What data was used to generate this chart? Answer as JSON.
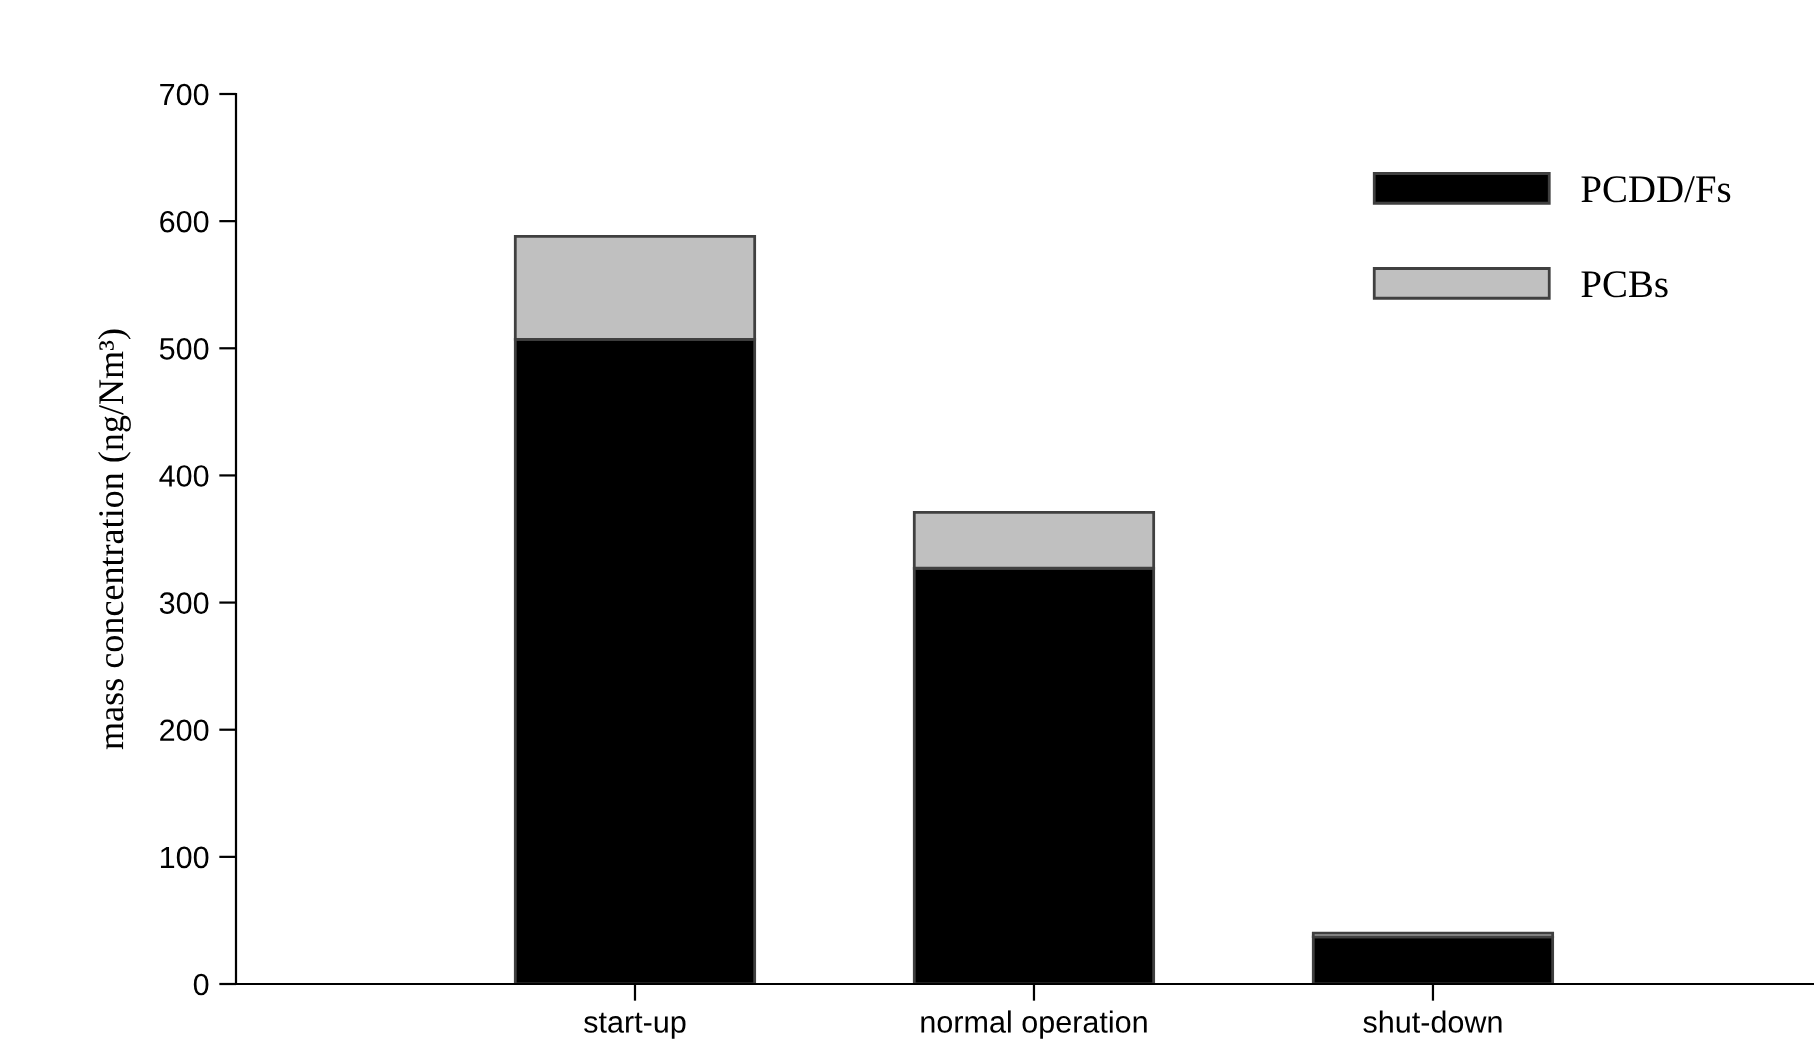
{
  "chart_data": {
    "type": "bar",
    "stacked": true,
    "ylabel": "mass concentration (ng/Nm³)",
    "categories": [
      "start-up",
      "normal operation",
      "shut-down"
    ],
    "series": [
      {
        "name": "PCDD/Fs",
        "color": "#000000",
        "values": [
          507,
          327,
          37
        ]
      },
      {
        "name": "PCBs",
        "color": "#c0c0c0",
        "values": [
          81,
          44,
          3
        ]
      }
    ],
    "ylim": [
      0,
      700
    ],
    "yticks": [
      0,
      100,
      200,
      300,
      400,
      500,
      600,
      700
    ],
    "grid": false,
    "legend": "top right"
  }
}
